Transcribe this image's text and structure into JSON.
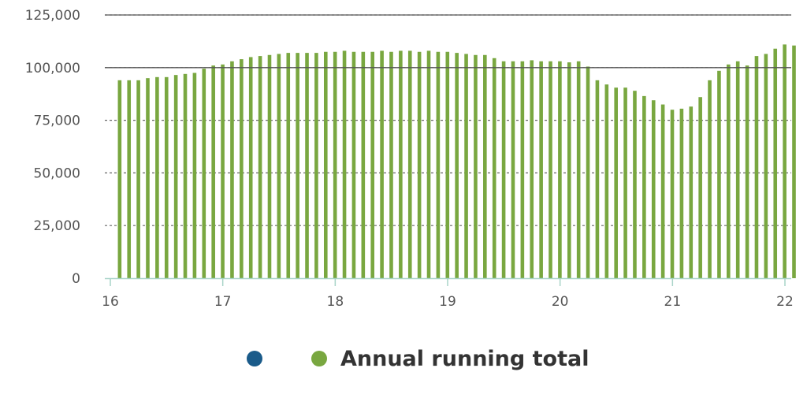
{
  "chart_data": {
    "type": "bar",
    "ylim": [
      0,
      125000
    ],
    "yticks": [
      0,
      25000,
      50000,
      75000,
      100000,
      125000
    ],
    "ytick_labels": [
      "0",
      "25,000",
      "50,000",
      "75,000",
      "100,000",
      "125,000"
    ],
    "xlim": [
      16,
      22
    ],
    "xticks": [
      16,
      17,
      18,
      19,
      20,
      21,
      22
    ],
    "xtick_labels": [
      "16",
      "17",
      "18",
      "19",
      "20",
      "21",
      "22"
    ],
    "grid": "dotted horizontal",
    "legend_position": "bottom-center",
    "legend": [
      {
        "name": "",
        "color": "#1a5b8a"
      },
      {
        "name": "Annual running total",
        "color": "#79a740"
      }
    ],
    "series": [
      {
        "name": "Annual running total",
        "color": "#79a740",
        "x_start": 16.083,
        "x_step": 0.0833,
        "values": [
          94000,
          94000,
          94000,
          95000,
          95500,
          95500,
          96500,
          97000,
          97500,
          99500,
          101000,
          101500,
          103000,
          104000,
          105000,
          105500,
          106000,
          106500,
          107000,
          107000,
          107000,
          107000,
          107500,
          107500,
          108000,
          107500,
          107500,
          107500,
          108000,
          107500,
          108000,
          108000,
          107500,
          108000,
          107500,
          107500,
          107000,
          106500,
          106000,
          106000,
          104500,
          103000,
          103000,
          103000,
          103500,
          103000,
          103000,
          103000,
          102500,
          103000,
          100500,
          94000,
          92000,
          90500,
          90500,
          89000,
          86500,
          84500,
          82500,
          80000,
          80500,
          81500,
          86000,
          94000,
          98500,
          101500,
          103000,
          101000,
          105500,
          106500,
          109000,
          111000,
          110500
        ]
      }
    ]
  }
}
